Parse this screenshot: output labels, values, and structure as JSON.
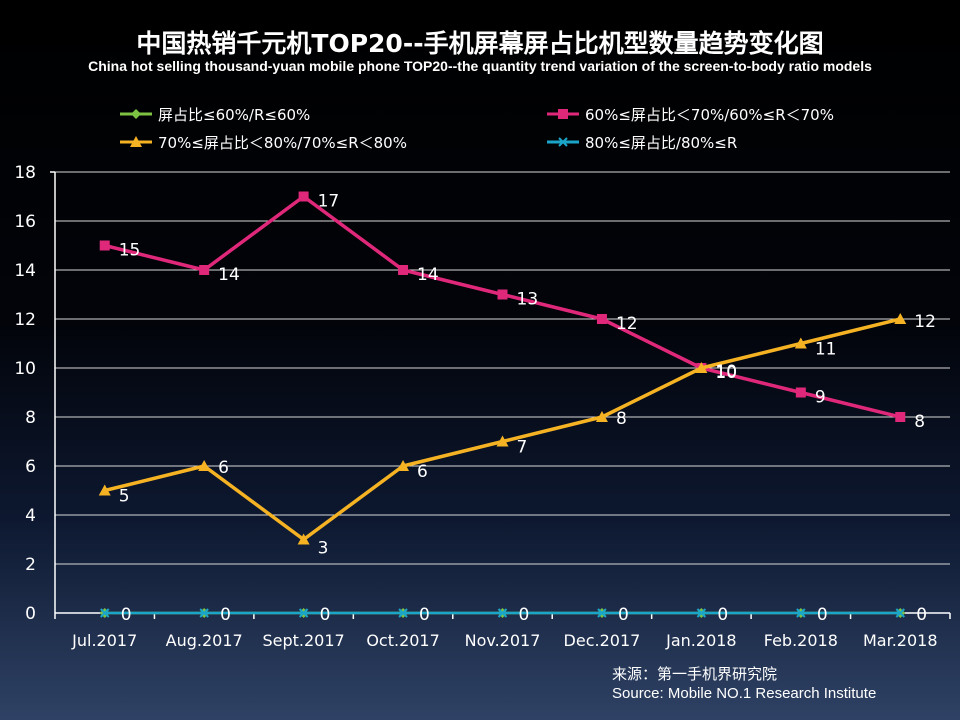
{
  "title": "中国热销千元机TOP20--手机屏幕屏占比机型数量趋势变化图",
  "subtitle": "China hot selling thousand-yuan mobile phone TOP20--the quantity trend variation of the screen-to-body ratio models",
  "source": {
    "line1": "来源：第一手机界研究院",
    "line2": "Source: Mobile NO.1 Research Institute"
  },
  "colors": {
    "grid": "#d8d8d8",
    "axis": "#ffffff",
    "text": "#ffffff"
  },
  "chart_data": {
    "type": "line",
    "title": "中国热销千元机TOP20--手机屏幕屏占比机型数量趋势变化图",
    "categories": [
      "Jul.2017",
      "Aug.2017",
      "Sept.2017",
      "Oct.2017",
      "Nov.2017",
      "Dec.2017",
      "Jan.2018",
      "Feb.2018",
      "Mar.2018"
    ],
    "ylim": [
      0,
      18
    ],
    "yticks": [
      0,
      2,
      4,
      6,
      8,
      10,
      12,
      14,
      16,
      18
    ],
    "grid": true,
    "legend_position": "top",
    "series": [
      {
        "name": "屏占比≤60%/R≤60%",
        "color": "#7dc242",
        "marker": "diamond",
        "values": [
          0,
          0,
          0,
          0,
          0,
          0,
          0,
          0,
          0
        ]
      },
      {
        "name": "60%≤屏占比＜70%/60%≤R＜70%",
        "color": "#e0287a",
        "marker": "square",
        "values": [
          15,
          14,
          17,
          14,
          13,
          12,
          10,
          9,
          8
        ]
      },
      {
        "name": "70%≤屏占比＜80%/70%≤R＜80%",
        "color": "#f5b324",
        "marker": "triangle",
        "values": [
          5,
          6,
          3,
          6,
          7,
          8,
          10,
          11,
          12
        ]
      },
      {
        "name": "80%≤屏占比/80%≤R",
        "color": "#1ba6c9",
        "marker": "x",
        "values": [
          0,
          0,
          0,
          0,
          0,
          0,
          0,
          0,
          0
        ]
      }
    ]
  }
}
